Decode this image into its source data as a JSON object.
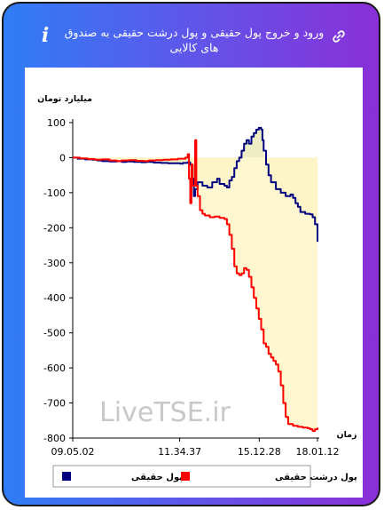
{
  "header": {
    "title": "ورود و خروج پول حقیقی و پول درشت حقیقی به صندوق های کالایی",
    "info_icon": "info-icon",
    "link_icon": "link-icon"
  },
  "chart_data": {
    "type": "line",
    "ylabel": "میلیارد تومان",
    "xlabel": "زمان",
    "ylim": [
      -800,
      100
    ],
    "yticks": [
      100,
      0,
      -100,
      -200,
      -300,
      -400,
      -500,
      -600,
      -700,
      -800
    ],
    "x_tick_labels": [
      "09.05.02",
      "11.34.37",
      "15.12.28",
      "18.01.12"
    ],
    "x_tick_positions": [
      0,
      0.437,
      0.762,
      1.0
    ],
    "watermark": "LiveTSE.ir",
    "series": [
      {
        "name": "پول حقیقی",
        "color": "#000080",
        "points": [
          [
            0.0,
            0
          ],
          [
            0.02,
            -3
          ],
          [
            0.05,
            -5
          ],
          [
            0.08,
            -6
          ],
          [
            0.1,
            -8
          ],
          [
            0.12,
            -10
          ],
          [
            0.15,
            -11
          ],
          [
            0.18,
            -10
          ],
          [
            0.2,
            -12
          ],
          [
            0.22,
            -11
          ],
          [
            0.25,
            -12
          ],
          [
            0.28,
            -13
          ],
          [
            0.3,
            -12
          ],
          [
            0.33,
            -14
          ],
          [
            0.36,
            -15
          ],
          [
            0.39,
            -16
          ],
          [
            0.42,
            -16
          ],
          [
            0.44,
            -17
          ],
          [
            0.45,
            -15
          ],
          [
            0.47,
            -13
          ],
          [
            0.48,
            -20
          ],
          [
            0.49,
            -60
          ],
          [
            0.495,
            -110
          ],
          [
            0.5,
            -90
          ],
          [
            0.51,
            -70
          ],
          [
            0.53,
            -80
          ],
          [
            0.55,
            -85
          ],
          [
            0.57,
            -70
          ],
          [
            0.59,
            -60
          ],
          [
            0.6,
            -75
          ],
          [
            0.62,
            -80
          ],
          [
            0.63,
            -85
          ],
          [
            0.64,
            -65
          ],
          [
            0.65,
            -55
          ],
          [
            0.66,
            -30
          ],
          [
            0.67,
            -10
          ],
          [
            0.68,
            0
          ],
          [
            0.69,
            20
          ],
          [
            0.7,
            40
          ],
          [
            0.71,
            50
          ],
          [
            0.72,
            40
          ],
          [
            0.73,
            60
          ],
          [
            0.74,
            70
          ],
          [
            0.75,
            80
          ],
          [
            0.76,
            85
          ],
          [
            0.77,
            80
          ],
          [
            0.775,
            50
          ],
          [
            0.78,
            20
          ],
          [
            0.79,
            -20
          ],
          [
            0.8,
            -50
          ],
          [
            0.81,
            -70
          ],
          [
            0.83,
            -90
          ],
          [
            0.85,
            -100
          ],
          [
            0.87,
            -110
          ],
          [
            0.89,
            -105
          ],
          [
            0.9,
            -115
          ],
          [
            0.91,
            -130
          ],
          [
            0.92,
            -140
          ],
          [
            0.93,
            -155
          ],
          [
            0.95,
            -160
          ],
          [
            0.97,
            -162
          ],
          [
            0.98,
            -170
          ],
          [
            0.99,
            -190
          ],
          [
            1.0,
            -240
          ]
        ]
      },
      {
        "name": "پول درشت حقیقی",
        "color": "#ff0000",
        "points": [
          [
            0.0,
            0
          ],
          [
            0.03,
            -2
          ],
          [
            0.06,
            -4
          ],
          [
            0.09,
            -6
          ],
          [
            0.12,
            -5
          ],
          [
            0.15,
            -8
          ],
          [
            0.18,
            -10
          ],
          [
            0.2,
            -8
          ],
          [
            0.23,
            -7
          ],
          [
            0.26,
            -9
          ],
          [
            0.29,
            -10
          ],
          [
            0.31,
            -8
          ],
          [
            0.34,
            -7
          ],
          [
            0.37,
            -6
          ],
          [
            0.4,
            -5
          ],
          [
            0.43,
            -3
          ],
          [
            0.46,
            0
          ],
          [
            0.47,
            10
          ],
          [
            0.475,
            -60
          ],
          [
            0.48,
            -130
          ],
          [
            0.485,
            -20
          ],
          [
            0.49,
            -80
          ],
          [
            0.5,
            50
          ],
          [
            0.505,
            -80
          ],
          [
            0.51,
            -110
          ],
          [
            0.52,
            -150
          ],
          [
            0.53,
            -160
          ],
          [
            0.54,
            -165
          ],
          [
            0.56,
            -170
          ],
          [
            0.58,
            -168
          ],
          [
            0.6,
            -172
          ],
          [
            0.62,
            -175
          ],
          [
            0.63,
            -190
          ],
          [
            0.64,
            -220
          ],
          [
            0.65,
            -260
          ],
          [
            0.66,
            -310
          ],
          [
            0.67,
            -330
          ],
          [
            0.68,
            -335
          ],
          [
            0.69,
            -330
          ],
          [
            0.7,
            -315
          ],
          [
            0.71,
            -320
          ],
          [
            0.72,
            -340
          ],
          [
            0.73,
            -370
          ],
          [
            0.74,
            -400
          ],
          [
            0.75,
            -430
          ],
          [
            0.76,
            -460
          ],
          [
            0.77,
            -490
          ],
          [
            0.78,
            -530
          ],
          [
            0.79,
            -540
          ],
          [
            0.8,
            -560
          ],
          [
            0.81,
            -570
          ],
          [
            0.82,
            -580
          ],
          [
            0.83,
            -590
          ],
          [
            0.84,
            -610
          ],
          [
            0.85,
            -650
          ],
          [
            0.86,
            -700
          ],
          [
            0.87,
            -740
          ],
          [
            0.88,
            -760
          ],
          [
            0.9,
            -765
          ],
          [
            0.92,
            -768
          ],
          [
            0.94,
            -770
          ],
          [
            0.96,
            -772
          ],
          [
            0.97,
            -775
          ],
          [
            0.98,
            -780
          ],
          [
            0.99,
            -775
          ],
          [
            1.0,
            -770
          ]
        ]
      }
    ]
  },
  "legend": {
    "items": [
      {
        "label": "پول حقیقی",
        "color": "#000080"
      },
      {
        "label": "پول درشت حقیقی",
        "color": "#ff0000"
      }
    ]
  }
}
